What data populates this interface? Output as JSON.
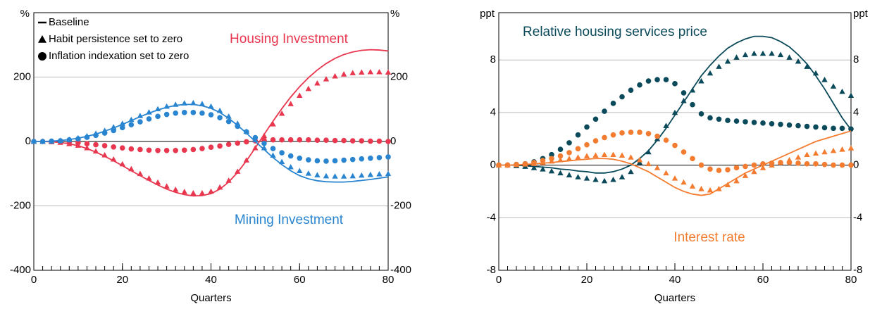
{
  "chart_data": [
    {
      "type": "line",
      "xlabel": "Quarters",
      "y_label": "%",
      "y2_label": "%",
      "xlim": [
        0,
        80
      ],
      "xticks": [
        0,
        20,
        40,
        60,
        80
      ],
      "ylim": [
        -400,
        400
      ],
      "yticks": [
        -400,
        -200,
        0,
        200
      ],
      "y2lim": [
        -400,
        400
      ],
      "y2ticks": [
        -400,
        -200,
        0,
        200
      ],
      "grid": true,
      "markers": [
        "line",
        "triangle",
        "circle"
      ],
      "legend": {
        "corner": "upper-left",
        "labels": [
          "Baseline",
          "Habit persistence set to zero",
          "Inflation indexation set to zero"
        ]
      },
      "x": [
        0,
        2,
        4,
        6,
        8,
        10,
        12,
        14,
        16,
        18,
        20,
        22,
        24,
        26,
        28,
        30,
        32,
        34,
        36,
        38,
        40,
        42,
        44,
        46,
        48,
        50,
        52,
        54,
        56,
        58,
        60,
        62,
        64,
        66,
        68,
        70,
        72,
        74,
        76,
        78,
        80
      ],
      "series": [
        {
          "name": "Housing Investment",
          "color": "#e8374f",
          "lines": [
            [
              0,
              0,
              -1,
              -3,
              -7,
              -13,
              -22,
              -33,
              -46,
              -60,
              -75,
              -91,
              -106,
              -121,
              -135,
              -148,
              -158,
              -165,
              -169,
              -168,
              -162,
              -148,
              -126,
              -96,
              -60,
              -20,
              22,
              63,
              102,
              138,
              170,
              198,
              222,
              242,
              258,
              270,
              278,
              283,
              285,
              284,
              281
            ],
            [
              0,
              0,
              -1,
              -3,
              -7,
              -12,
              -20,
              -30,
              -42,
              -55,
              -70,
              -85,
              -100,
              -114,
              -127,
              -139,
              -149,
              -156,
              -160,
              -160,
              -155,
              -142,
              -121,
              -93,
              -58,
              -20,
              18,
              54,
              87,
              117,
              143,
              164,
              181,
              194,
              203,
              209,
              213,
              215,
              216,
              216,
              215
            ],
            [
              0,
              0,
              0,
              -1,
              -2,
              -4,
              -7,
              -10,
              -13,
              -17,
              -20,
              -23,
              -25,
              -27,
              -28,
              -28,
              -28,
              -27,
              -25,
              -22,
              -18,
              -14,
              -9,
              -5,
              -1,
              2,
              4,
              5,
              5,
              5,
              5,
              5,
              4,
              4,
              3,
              3,
              2,
              2,
              1,
              1,
              0
            ]
          ]
        },
        {
          "name": "Mining Investment",
          "color": "#2a85d0",
          "lines": [
            [
              0,
              0,
              1,
              3,
              6,
              10,
              16,
              23,
              32,
              42,
              53,
              65,
              77,
              88,
              98,
              106,
              112,
              115,
              115,
              111,
              103,
              90,
              72,
              50,
              26,
              0,
              -25,
              -50,
              -72,
              -91,
              -106,
              -116,
              -122,
              -125,
              -126,
              -126,
              -124,
              -121,
              -118,
              -114,
              -110
            ],
            [
              0,
              0,
              1,
              3,
              6,
              11,
              17,
              25,
              34,
              45,
              56,
              68,
              80,
              91,
              101,
              109,
              115,
              119,
              120,
              117,
              109,
              96,
              78,
              56,
              31,
              5,
              -20,
              -43,
              -63,
              -79,
              -91,
              -99,
              -104,
              -107,
              -108,
              -108,
              -107,
              -105,
              -103,
              -101,
              -100
            ],
            [
              0,
              0,
              1,
              2,
              5,
              8,
              13,
              19,
              26,
              34,
              43,
              52,
              61,
              70,
              78,
              84,
              88,
              90,
              90,
              88,
              83,
              74,
              62,
              47,
              30,
              12,
              -6,
              -22,
              -35,
              -45,
              -52,
              -57,
              -60,
              -61,
              -60,
              -58,
              -56,
              -54,
              -52,
              -50,
              -48
            ]
          ]
        }
      ]
    },
    {
      "type": "line",
      "xlabel": "Quarters",
      "y_label": "ppt",
      "y2_label": "ppt",
      "xlim": [
        0,
        80
      ],
      "xticks": [
        0,
        20,
        40,
        60,
        80
      ],
      "ylim": [
        -8,
        11.6
      ],
      "yticks": [
        -8,
        -4,
        0,
        4,
        8
      ],
      "y2lim": [
        -8,
        11.6
      ],
      "y2ticks": [
        -8,
        -4,
        0,
        4,
        8
      ],
      "grid": true,
      "markers": [
        "line",
        "triangle",
        "circle"
      ],
      "x": [
        0,
        2,
        4,
        6,
        8,
        10,
        12,
        14,
        16,
        18,
        20,
        22,
        24,
        26,
        28,
        30,
        32,
        34,
        36,
        38,
        40,
        42,
        44,
        46,
        48,
        50,
        52,
        54,
        56,
        58,
        60,
        62,
        64,
        66,
        68,
        70,
        72,
        74,
        76,
        78,
        80
      ],
      "series": [
        {
          "name": "Relative housing services price",
          "color": "#0b4a5a",
          "lines": [
            [
              0,
              0,
              0,
              -0.05,
              -0.1,
              -0.15,
              -0.2,
              -0.3,
              -0.35,
              -0.45,
              -0.5,
              -0.6,
              -0.6,
              -0.5,
              -0.3,
              0,
              0.5,
              1.1,
              1.9,
              2.8,
              3.8,
              4.8,
              5.8,
              6.8,
              7.6,
              8.3,
              8.9,
              9.3,
              9.6,
              9.8,
              9.8,
              9.7,
              9.4,
              9.0,
              8.4,
              7.7,
              6.8,
              5.8,
              4.7,
              3.6,
              2.7
            ],
            [
              0,
              0,
              -0.05,
              -0.1,
              -0.2,
              -0.3,
              -0.45,
              -0.6,
              -0.75,
              -0.9,
              -1.0,
              -1.1,
              -1.2,
              -1.1,
              -0.9,
              -0.5,
              0.2,
              1.0,
              2.0,
              3.0,
              4.0,
              4.9,
              5.7,
              6.4,
              7.0,
              7.5,
              7.9,
              8.2,
              8.4,
              8.5,
              8.5,
              8.5,
              8.4,
              8.2,
              7.9,
              7.5,
              7.0,
              6.5,
              6.0,
              5.6,
              5.3
            ],
            [
              0,
              0,
              0.05,
              0.1,
              0.25,
              0.5,
              0.8,
              1.2,
              1.7,
              2.3,
              2.9,
              3.5,
              4.1,
              4.7,
              5.2,
              5.7,
              6.1,
              6.4,
              6.5,
              6.5,
              6.2,
              5.5,
              4.6,
              3.9,
              3.6,
              3.5,
              3.4,
              3.35,
              3.3,
              3.25,
              3.2,
              3.15,
              3.1,
              3.05,
              3.0,
              2.95,
              2.9,
              2.85,
              2.8,
              2.8,
              2.75
            ]
          ]
        },
        {
          "name": "Interest rate",
          "color": "#f47c30",
          "lines": [
            [
              0,
              0,
              0.02,
              0.05,
              0.1,
              0.15,
              0.2,
              0.27,
              0.33,
              0.4,
              0.45,
              0.5,
              0.5,
              0.45,
              0.3,
              0.1,
              -0.2,
              -0.5,
              -0.9,
              -1.3,
              -1.7,
              -2.0,
              -2.2,
              -2.3,
              -2.2,
              -1.8,
              -1.4,
              -1.0,
              -0.6,
              -0.3,
              0,
              0.3,
              0.6,
              0.9,
              1.2,
              1.5,
              1.8,
              2.0,
              2.2,
              2.4,
              2.6
            ],
            [
              0,
              0,
              0.03,
              0.07,
              0.12,
              0.2,
              0.3,
              0.4,
              0.5,
              0.6,
              0.7,
              0.75,
              0.8,
              0.8,
              0.75,
              0.6,
              0.4,
              0.1,
              -0.2,
              -0.6,
              -1.0,
              -1.3,
              -1.6,
              -1.8,
              -1.9,
              -1.8,
              -1.5,
              -1.2,
              -0.8,
              -0.5,
              -0.2,
              0,
              0.2,
              0.4,
              0.6,
              0.8,
              0.9,
              1.0,
              1.1,
              1.2,
              1.3
            ],
            [
              0,
              0,
              0.05,
              0.1,
              0.2,
              0.35,
              0.5,
              0.7,
              0.95,
              1.25,
              1.55,
              1.85,
              2.1,
              2.3,
              2.45,
              2.5,
              2.5,
              2.4,
              2.2,
              1.9,
              1.5,
              1.0,
              0.5,
              0.0,
              -0.3,
              -0.4,
              -0.35,
              -0.2,
              -0.1,
              0,
              0.1,
              0.15,
              0.2,
              0.2,
              0.15,
              0.1,
              0.1,
              0.05,
              0,
              0,
              0
            ]
          ]
        }
      ]
    }
  ]
}
